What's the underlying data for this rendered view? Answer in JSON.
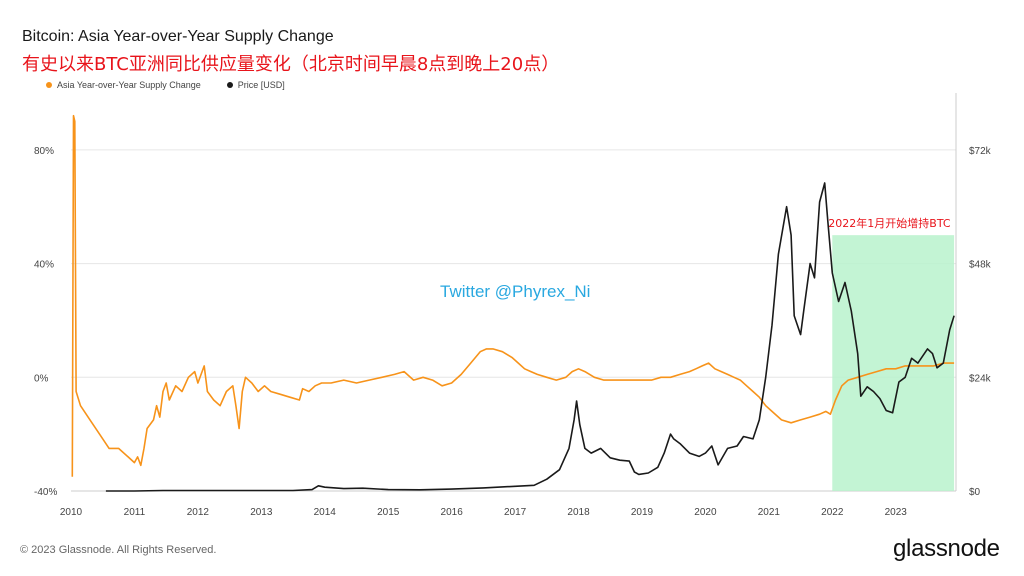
{
  "header": {
    "title": "Bitcoin: Asia Year-over-Year Supply Change",
    "subtitle": "有史以来BTC亚洲同比供应量变化（北京时间早晨8点到晚上20点）"
  },
  "legend": {
    "series1": "Asia Year-over-Year Supply Change",
    "series2": "Price [USD]"
  },
  "watermark": "Twitter @Phyrex_Ni",
  "footer": {
    "copyright": "© 2023 Glassnode. All Rights Reserved.",
    "brand": "glassnode"
  },
  "colors": {
    "supply": "#f7931a",
    "price": "#1a1a1a",
    "highlight": "#b8f2cc",
    "annotation": "#e8141b"
  },
  "chart_data": {
    "type": "line",
    "title": "Bitcoin: Asia Year-over-Year Supply Change",
    "x_ticks": [
      "2010",
      "2011",
      "2012",
      "2013",
      "2014",
      "2015",
      "2016",
      "2017",
      "2018",
      "2019",
      "2020",
      "2021",
      "2022",
      "2023"
    ],
    "x_range": [
      2010.0,
      2023.95
    ],
    "y_left": {
      "ticks": [
        "80%",
        "40%",
        "0%",
        "-40%"
      ],
      "tick_values": [
        80,
        40,
        0,
        -40
      ],
      "range": [
        -40,
        100
      ]
    },
    "y_right": {
      "ticks": [
        "$72k",
        "$48k",
        "$24k",
        "$0"
      ],
      "tick_values": [
        72000,
        48000,
        24000,
        0
      ],
      "range": [
        0,
        84000
      ]
    },
    "highlight": {
      "label": "2022年1月开始增持BTC",
      "x_start": 2022.0,
      "x_end": 2023.92,
      "y_top_pct": 54
    },
    "series": [
      {
        "name": "Asia Year-over-Year Supply Change",
        "axis": "left",
        "points": [
          [
            2010.02,
            -35
          ],
          [
            2010.04,
            92
          ],
          [
            2010.06,
            90
          ],
          [
            2010.08,
            -5
          ],
          [
            2010.15,
            -10
          ],
          [
            2010.3,
            -15
          ],
          [
            2010.45,
            -20
          ],
          [
            2010.6,
            -25
          ],
          [
            2010.75,
            -25
          ],
          [
            2010.9,
            -28
          ],
          [
            2011.0,
            -30
          ],
          [
            2011.05,
            -28
          ],
          [
            2011.1,
            -31
          ],
          [
            2011.15,
            -25
          ],
          [
            2011.2,
            -18
          ],
          [
            2011.3,
            -15
          ],
          [
            2011.35,
            -10
          ],
          [
            2011.4,
            -14
          ],
          [
            2011.45,
            -5
          ],
          [
            2011.5,
            -2
          ],
          [
            2011.55,
            -8
          ],
          [
            2011.65,
            -3
          ],
          [
            2011.75,
            -5
          ],
          [
            2011.85,
            0
          ],
          [
            2011.95,
            2
          ],
          [
            2012.0,
            -2
          ],
          [
            2012.1,
            4
          ],
          [
            2012.15,
            -5
          ],
          [
            2012.25,
            -8
          ],
          [
            2012.35,
            -10
          ],
          [
            2012.45,
            -5
          ],
          [
            2012.55,
            -3
          ],
          [
            2012.6,
            -10
          ],
          [
            2012.65,
            -18
          ],
          [
            2012.7,
            -5
          ],
          [
            2012.75,
            0
          ],
          [
            2012.85,
            -2
          ],
          [
            2012.95,
            -5
          ],
          [
            2013.05,
            -3
          ],
          [
            2013.15,
            -5
          ],
          [
            2013.3,
            -6
          ],
          [
            2013.45,
            -7
          ],
          [
            2013.6,
            -8
          ],
          [
            2013.65,
            -4
          ],
          [
            2013.75,
            -5
          ],
          [
            2013.85,
            -3
          ],
          [
            2013.95,
            -2
          ],
          [
            2014.1,
            -2
          ],
          [
            2014.3,
            -1
          ],
          [
            2014.5,
            -2
          ],
          [
            2014.7,
            -1
          ],
          [
            2014.9,
            0
          ],
          [
            2015.1,
            1
          ],
          [
            2015.25,
            2
          ],
          [
            2015.4,
            -1
          ],
          [
            2015.55,
            0
          ],
          [
            2015.7,
            -1
          ],
          [
            2015.85,
            -3
          ],
          [
            2016.0,
            -2
          ],
          [
            2016.15,
            1
          ],
          [
            2016.3,
            5
          ],
          [
            2016.45,
            9
          ],
          [
            2016.55,
            10
          ],
          [
            2016.65,
            10
          ],
          [
            2016.8,
            9
          ],
          [
            2016.95,
            7
          ],
          [
            2017.05,
            5
          ],
          [
            2017.15,
            3
          ],
          [
            2017.25,
            2
          ],
          [
            2017.35,
            1
          ],
          [
            2017.5,
            0
          ],
          [
            2017.65,
            -1
          ],
          [
            2017.8,
            0
          ],
          [
            2017.9,
            2
          ],
          [
            2018.0,
            3
          ],
          [
            2018.1,
            2
          ],
          [
            2018.25,
            0
          ],
          [
            2018.4,
            -1
          ],
          [
            2018.55,
            -1
          ],
          [
            2018.7,
            -1
          ],
          [
            2018.85,
            -1
          ],
          [
            2019.0,
            -1
          ],
          [
            2019.15,
            -1
          ],
          [
            2019.3,
            0
          ],
          [
            2019.45,
            0
          ],
          [
            2019.6,
            1
          ],
          [
            2019.75,
            2
          ],
          [
            2019.85,
            3
          ],
          [
            2019.95,
            4
          ],
          [
            2020.05,
            5
          ],
          [
            2020.15,
            3
          ],
          [
            2020.25,
            2
          ],
          [
            2020.35,
            1
          ],
          [
            2020.45,
            0
          ],
          [
            2020.55,
            -1
          ],
          [
            2020.65,
            -3
          ],
          [
            2020.75,
            -5
          ],
          [
            2020.85,
            -7
          ],
          [
            2020.95,
            -10
          ],
          [
            2021.05,
            -12
          ],
          [
            2021.2,
            -15
          ],
          [
            2021.35,
            -16
          ],
          [
            2021.5,
            -15
          ],
          [
            2021.65,
            -14
          ],
          [
            2021.8,
            -13
          ],
          [
            2021.9,
            -12
          ],
          [
            2021.97,
            -13
          ],
          [
            2022.05,
            -8
          ],
          [
            2022.15,
            -3
          ],
          [
            2022.25,
            -1
          ],
          [
            2022.4,
            0
          ],
          [
            2022.55,
            1
          ],
          [
            2022.7,
            2
          ],
          [
            2022.85,
            3
          ],
          [
            2023.0,
            3
          ],
          [
            2023.15,
            4
          ],
          [
            2023.3,
            4
          ],
          [
            2023.45,
            4
          ],
          [
            2023.6,
            4
          ],
          [
            2023.75,
            5
          ],
          [
            2023.85,
            5
          ],
          [
            2023.92,
            5
          ]
        ]
      },
      {
        "name": "Price [USD]",
        "axis": "right",
        "points": [
          [
            2010.55,
            0
          ],
          [
            2011.0,
            0
          ],
          [
            2011.45,
            0.1
          ],
          [
            2012.0,
            0.1
          ],
          [
            2012.5,
            0.1
          ],
          [
            2013.0,
            0.1
          ],
          [
            2013.3,
            0.1
          ],
          [
            2013.5,
            0.1
          ],
          [
            2013.8,
            0.3
          ],
          [
            2013.9,
            1.1
          ],
          [
            2014.0,
            0.8
          ],
          [
            2014.3,
            0.5
          ],
          [
            2014.6,
            0.6
          ],
          [
            2015.0,
            0.3
          ],
          [
            2015.5,
            0.25
          ],
          [
            2016.0,
            0.4
          ],
          [
            2016.5,
            0.65
          ],
          [
            2017.0,
            1
          ],
          [
            2017.3,
            1.2
          ],
          [
            2017.5,
            2.5
          ],
          [
            2017.7,
            4.5
          ],
          [
            2017.85,
            9
          ],
          [
            2017.93,
            15
          ],
          [
            2017.97,
            19
          ],
          [
            2018.02,
            14
          ],
          [
            2018.1,
            9
          ],
          [
            2018.2,
            8
          ],
          [
            2018.35,
            9
          ],
          [
            2018.5,
            7
          ],
          [
            2018.65,
            6.5
          ],
          [
            2018.8,
            6.3
          ],
          [
            2018.88,
            4
          ],
          [
            2018.95,
            3.5
          ],
          [
            2019.1,
            3.8
          ],
          [
            2019.25,
            5
          ],
          [
            2019.35,
            8
          ],
          [
            2019.45,
            12
          ],
          [
            2019.5,
            11
          ],
          [
            2019.6,
            10
          ],
          [
            2019.75,
            8
          ],
          [
            2019.9,
            7.3
          ],
          [
            2020.0,
            8
          ],
          [
            2020.1,
            9.5
          ],
          [
            2020.2,
            5.5
          ],
          [
            2020.35,
            9
          ],
          [
            2020.5,
            9.5
          ],
          [
            2020.6,
            11.5
          ],
          [
            2020.75,
            11
          ],
          [
            2020.85,
            15
          ],
          [
            2020.95,
            24
          ],
          [
            2021.05,
            35
          ],
          [
            2021.15,
            50
          ],
          [
            2021.28,
            60
          ],
          [
            2021.35,
            54
          ],
          [
            2021.4,
            37
          ],
          [
            2021.5,
            33
          ],
          [
            2021.55,
            38
          ],
          [
            2021.65,
            48
          ],
          [
            2021.72,
            45
          ],
          [
            2021.8,
            61
          ],
          [
            2021.88,
            65
          ],
          [
            2021.93,
            57
          ],
          [
            2022.0,
            46
          ],
          [
            2022.1,
            40
          ],
          [
            2022.2,
            44
          ],
          [
            2022.3,
            38
          ],
          [
            2022.4,
            29
          ],
          [
            2022.45,
            20
          ],
          [
            2022.55,
            22
          ],
          [
            2022.65,
            21
          ],
          [
            2022.75,
            19.5
          ],
          [
            2022.85,
            17
          ],
          [
            2022.95,
            16.5
          ],
          [
            2023.05,
            23
          ],
          [
            2023.15,
            24
          ],
          [
            2023.25,
            28
          ],
          [
            2023.35,
            27
          ],
          [
            2023.5,
            30
          ],
          [
            2023.58,
            29
          ],
          [
            2023.65,
            26
          ],
          [
            2023.75,
            27
          ],
          [
            2023.85,
            34
          ],
          [
            2023.92,
            37
          ]
        ]
      }
    ]
  }
}
